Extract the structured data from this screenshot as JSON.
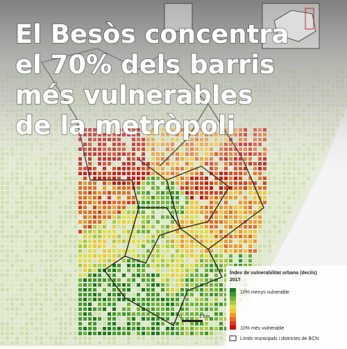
{
  "title_lines": [
    "El Besòs concentra",
    "el 70% dels barris",
    "més vulnerables",
    "de la metròpoli"
  ],
  "legend": {
    "title": "Índex de vulnerabilitat urbana (decils)",
    "year": "2017",
    "top_label": "10% menys vulnerable",
    "bottom_label": "10% més vulnerable",
    "boundary_label": "Límits municipals i districtes de BCN"
  },
  "scale": {
    "start": "0",
    "end": "1 km"
  }
}
